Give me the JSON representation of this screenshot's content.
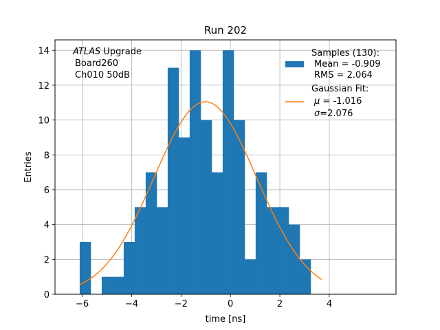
{
  "chart_data": {
    "type": "bar",
    "title": "Run 202",
    "xlabel": "time [ns]",
    "ylabel": "Entries",
    "xlim": [
      -7.1,
      6.7
    ],
    "ylim": [
      0,
      14.6
    ],
    "xticks": [
      -6,
      -4,
      -2,
      0,
      2,
      4
    ],
    "yticks": [
      0,
      2,
      4,
      6,
      8,
      10,
      12,
      14
    ],
    "xtick_labels": [
      "−6",
      "−4",
      "−2",
      "0",
      "2",
      "4"
    ],
    "ytick_labels": [
      "0",
      "2",
      "4",
      "6",
      "8",
      "10",
      "12",
      "14"
    ],
    "grid": true,
    "bin_edges": [
      -6.1,
      -5.655,
      -5.21,
      -4.765,
      -4.32,
      -3.875,
      -3.43,
      -2.985,
      -2.54,
      -2.095,
      -1.65,
      -1.205,
      -0.76,
      -0.315,
      0.13,
      0.575,
      1.02,
      1.465,
      1.91,
      2.355,
      2.8,
      3.245,
      3.69
    ],
    "bin_counts": [
      3,
      0,
      1,
      1,
      3,
      5,
      7,
      5,
      13,
      9,
      14,
      10,
      7,
      14,
      10,
      2,
      7,
      5,
      5,
      4,
      2,
      0
    ],
    "bar_color": "#1f77b4",
    "fit_color": "#ff7f0e",
    "gaussian_fit": {
      "amplitude": 11.05,
      "mu": -1.016,
      "sigma": 2.076,
      "x_range": [
        -6.1,
        3.69
      ]
    },
    "annotation": {
      "italic": "ATLAS",
      "rest": " Upgrade",
      "lines": [
        "Board260",
        "Ch010 50dB"
      ]
    },
    "legend": {
      "position": "top-right",
      "samples": {
        "line1": "Samples (130):",
        "line2": "Mean = -0.909",
        "line3": "RMS = 2.064"
      },
      "fit": {
        "line1": "Gaussian Fit:",
        "mu_symbol": "μ",
        "mu_value": " = -1.016",
        "sigma_symbol": "σ",
        "sigma_value": "=2.076"
      }
    }
  }
}
